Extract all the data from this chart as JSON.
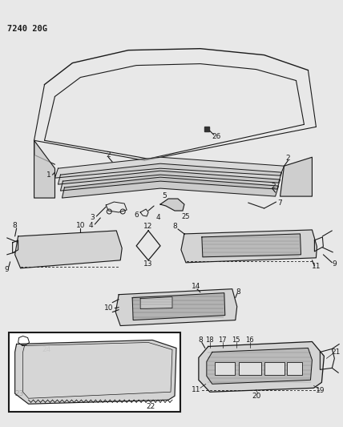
{
  "title_code": "7240 20G",
  "bg_color": "#e8e8e8",
  "line_color": "#1a1a1a",
  "fig_width": 4.28,
  "fig_height": 5.33,
  "dpi": 100
}
